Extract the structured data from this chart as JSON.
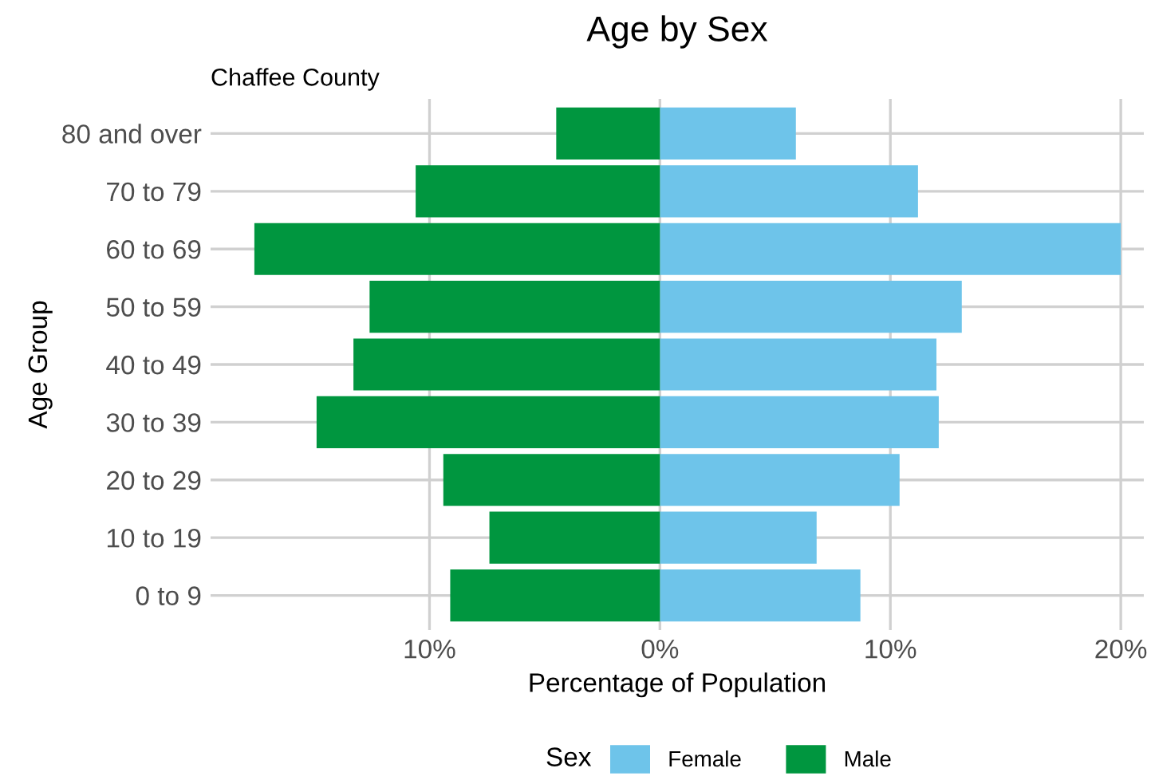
{
  "chart_data": {
    "type": "bar",
    "orientation": "horizontal",
    "title": "Age by Sex",
    "subtitle": "Chaffee County",
    "xlabel": "Percentage of Population",
    "ylabel": "Age Group",
    "legend_title": "Sex",
    "categories": [
      "80 and over",
      "70 to 79",
      "60 to 69",
      "50 to 59",
      "40 to 49",
      "30 to 39",
      "20 to 29",
      "10 to 19",
      "0 to 9"
    ],
    "series": [
      {
        "name": "Female",
        "color": "#6ec4ea",
        "values": [
          5.9,
          11.2,
          20.0,
          13.1,
          12.0,
          12.1,
          10.4,
          6.8,
          8.7
        ]
      },
      {
        "name": "Male",
        "color": "#00963f",
        "values": [
          -4.5,
          -10.6,
          -17.6,
          -12.6,
          -13.3,
          -14.9,
          -9.4,
          -7.4,
          -9.1
        ]
      }
    ],
    "xlim": [
      -19.5,
      21.0
    ],
    "xticks": [
      {
        "value": -10,
        "label": "10%"
      },
      {
        "value": 0,
        "label": "0%"
      },
      {
        "value": 10,
        "label": "10%"
      },
      {
        "value": 20,
        "label": "20%"
      }
    ],
    "grid": true,
    "legend": "bottom",
    "stacked": true
  }
}
